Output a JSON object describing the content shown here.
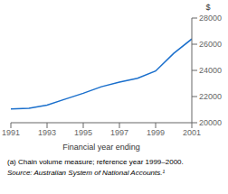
{
  "chart_data": {
    "type": "line",
    "x": [
      1991,
      1992,
      1993,
      1994,
      1995,
      1996,
      1997,
      1998,
      1999,
      2000,
      2001
    ],
    "series": [
      {
        "values": [
          21050,
          21100,
          21350,
          21800,
          22250,
          22750,
          23100,
          23400,
          23950,
          25300,
          26400
        ],
        "color": "#1a6fcc"
      }
    ],
    "xlim": [
      1991,
      2001
    ],
    "ylim": [
      20000,
      28000
    ],
    "xticks": [
      1991,
      1993,
      1995,
      1997,
      1999,
      2001
    ],
    "yticks": [
      20000,
      22000,
      24000,
      26000,
      28000
    ],
    "xlabel": "Financial year ending",
    "ylabel": "$",
    "annotations": [
      "(a) Chain volume measure; reference year 1999–2000.",
      "Source: Australian System of National Accounts.¹"
    ]
  }
}
